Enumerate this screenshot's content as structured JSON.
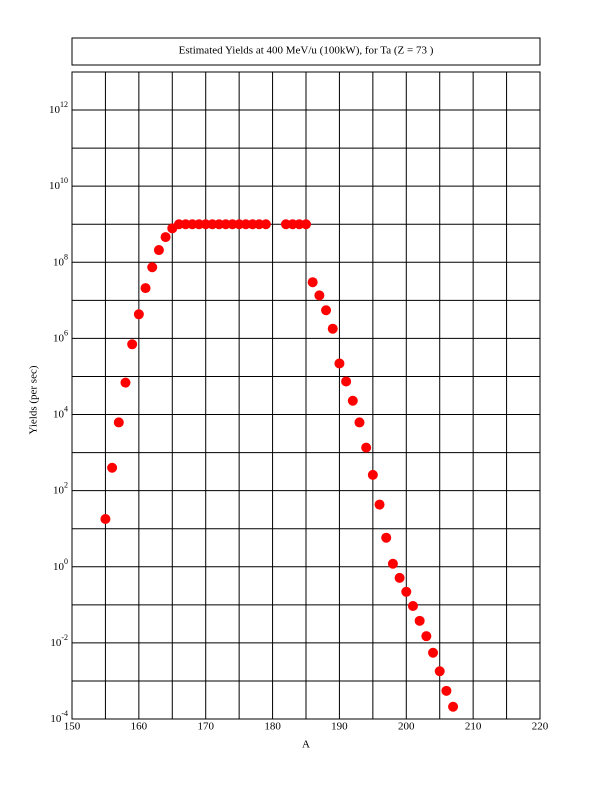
{
  "chart_data": {
    "type": "scatter",
    "title": "Estimated Yields at 400 MeV/u (100kW), for Ta (Z = 73 )",
    "x_label": "A",
    "y_label": "Yields (per sec)",
    "log_y": true,
    "grid": true,
    "color": "#ff0000",
    "x": [
      155,
      156,
      157,
      158,
      159,
      160,
      161,
      162,
      163,
      164,
      165,
      166,
      167,
      168,
      169,
      170,
      171,
      172,
      173,
      174,
      175,
      176,
      177,
      178,
      179,
      182,
      183,
      184,
      185,
      186,
      187,
      188,
      189,
      190,
      191,
      192,
      193,
      194,
      195,
      196,
      197,
      198,
      199,
      200,
      201,
      202,
      203,
      204,
      205,
      206,
      207
    ],
    "values": [
      18,
      400,
      6200,
      69000,
      700000,
      4300000,
      21000000,
      74000000,
      210000000,
      460000000,
      780000000,
      1000000000,
      1000000000,
      1000000000,
      1000000000,
      1000000000,
      1000000000,
      1000000000,
      1000000000,
      1000000000,
      1000000000,
      1000000000,
      1000000000,
      1000000000,
      1000000000,
      1000000000,
      1000000000,
      1000000000,
      1000000000,
      30000000,
      13500000,
      5500000,
      1800000,
      220000,
      74000,
      23000,
      6200,
      1350,
      260,
      43,
      5.8,
      1.2,
      0.51,
      0.22,
      0.093,
      0.038,
      0.015,
      0.0055,
      0.0018,
      0.00055,
      0.00021
    ],
    "xlim": [
      150,
      220
    ],
    "xticks": [
      150,
      160,
      170,
      180,
      190,
      200,
      210,
      220
    ],
    "xgrid_minor": [
      155,
      165,
      175,
      185,
      195,
      205,
      215
    ],
    "ylim": [
      0.0001,
      10000000000000.0
    ],
    "yticks": [
      {
        "value": 0.0001,
        "label": "10^-4"
      },
      {
        "value": 0.01,
        "label": "10^-2"
      },
      {
        "value": 1,
        "label": "10^0"
      },
      {
        "value": 100,
        "label": "10^2"
      },
      {
        "value": 10000,
        "label": "10^4"
      },
      {
        "value": 1000000,
        "label": "10^6"
      },
      {
        "value": 100000000,
        "label": "10^8"
      },
      {
        "value": 10000000000,
        "label": "10^10"
      },
      {
        "value": 1000000000000,
        "label": "10^12"
      }
    ],
    "ygrid_minor": [
      0.001,
      0.1,
      10,
      1000,
      100000,
      10000000,
      1000000000,
      100000000000
    ]
  }
}
